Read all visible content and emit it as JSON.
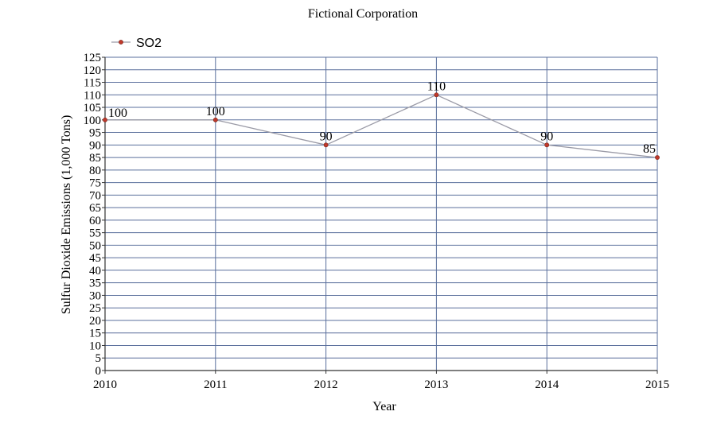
{
  "colors": {
    "grid": "#5a6f9c",
    "line": "#9a9aa6",
    "marker": "#c0392b",
    "axis": "#333333",
    "text": "#111111"
  },
  "chart_data": {
    "type": "line",
    "title": "Fictional Corporation",
    "xlabel": "Year",
    "ylabel": "Sulfur Dioxide Emissions (1,000 Tons)",
    "x": [
      "2010",
      "2011",
      "2012",
      "2013",
      "2014",
      "2015"
    ],
    "ylim": [
      0,
      125
    ],
    "ytick_step": 5,
    "grid": true,
    "legend_position": "top-left",
    "series": [
      {
        "name": "SO2",
        "values": [
          100,
          100,
          90,
          110,
          90,
          85
        ]
      }
    ]
  }
}
